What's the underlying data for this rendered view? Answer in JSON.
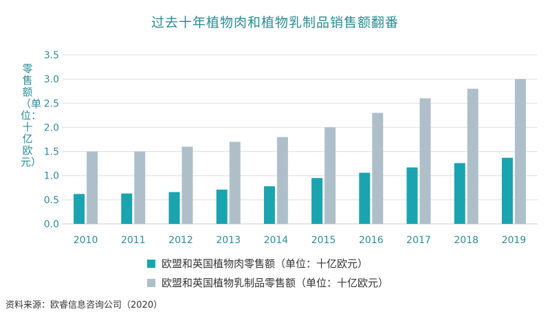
{
  "chart_data": {
    "type": "bar",
    "title": "过去十年植物肉和植物乳制品销售额翻番",
    "xlabel": "",
    "ylabel": "零售额（单位：十亿欧元）",
    "ylim": [
      0,
      3.5
    ],
    "yticks": [
      "0.0",
      "0.5",
      "1.0",
      "1.5",
      "2.0",
      "2.5",
      "3.0",
      "3.5"
    ],
    "grid": true,
    "legend_position": "bottom",
    "categories": [
      "2010",
      "2011",
      "2012",
      "2013",
      "2014",
      "2015",
      "2016",
      "2017",
      "2018",
      "2019"
    ],
    "series": [
      {
        "name": "欧盟和英国植物肉零售额（单位：十亿欧元）",
        "color": "#1aa4b0",
        "values": [
          0.62,
          0.63,
          0.66,
          0.71,
          0.78,
          0.95,
          1.06,
          1.17,
          1.26,
          1.37
        ]
      },
      {
        "name": "欧盟和英国植物乳制品零售额（单位：十亿欧元）",
        "color": "#aebfc9",
        "values": [
          1.5,
          1.5,
          1.6,
          1.7,
          1.8,
          2.0,
          2.3,
          2.6,
          2.8,
          3.0
        ]
      }
    ]
  },
  "source": "资料来源：欧睿信息咨询公司（2020）"
}
